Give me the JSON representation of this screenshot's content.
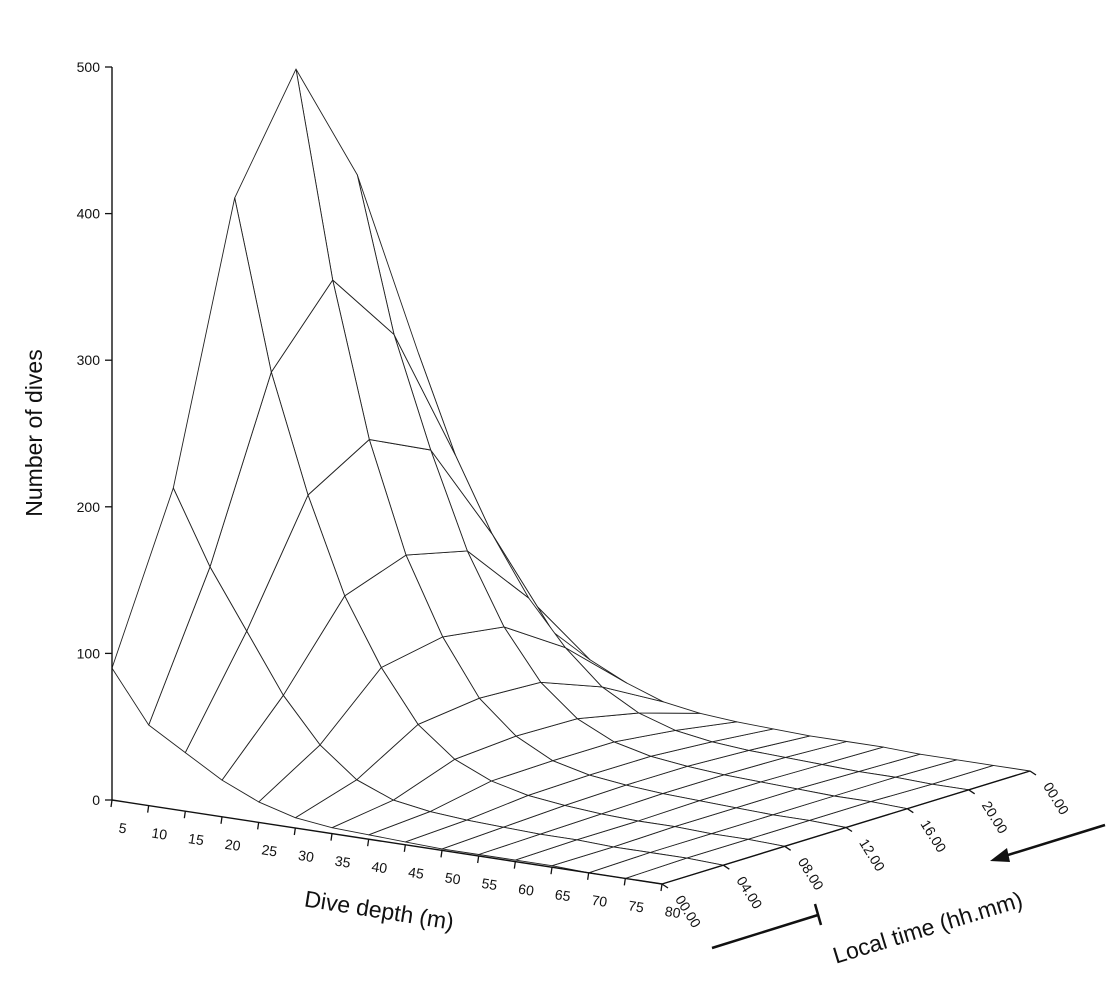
{
  "chart_data": {
    "type": "surface",
    "xlabel": "Dive depth (m)",
    "ylabel": "Number of dives",
    "zlabel": "Local time (hh.mm)",
    "depth_ticks": [
      "5",
      "10",
      "15",
      "20",
      "25",
      "30",
      "35",
      "40",
      "45",
      "50",
      "55",
      "60",
      "65",
      "70",
      "75",
      "80"
    ],
    "time_ticks": [
      "00.00",
      "04.00",
      "08.00",
      "12.00",
      "16.00",
      "20.00",
      "00.00"
    ],
    "count_ticks": [
      "0",
      "100",
      "200",
      "300",
      "400",
      "500"
    ],
    "count_range": [
      0,
      500
    ],
    "depths": [
      5,
      10,
      15,
      20,
      25,
      30,
      35,
      40,
      45,
      50,
      55,
      60,
      65,
      70,
      75,
      80
    ],
    "times": [
      0,
      4,
      8,
      12,
      16,
      20,
      24
    ],
    "dives": [
      [
        90,
        55,
        40,
        25,
        14,
        7,
        4,
        3,
        2,
        1,
        1,
        1,
        1,
        0,
        0,
        0
      ],
      [
        200,
        150,
        110,
        70,
        40,
        20,
        10,
        6,
        4,
        3,
        2,
        2,
        1,
        1,
        1,
        0
      ],
      [
        385,
        270,
        190,
        125,
        80,
        45,
        25,
        14,
        8,
        5,
        3,
        2,
        2,
        1,
        1,
        0
      ],
      [
        460,
        320,
        215,
        140,
        88,
        50,
        28,
        15,
        9,
        6,
        4,
        3,
        2,
        1,
        1,
        0
      ],
      [
        375,
        270,
        195,
        130,
        82,
        48,
        27,
        15,
        9,
        6,
        4,
        3,
        2,
        1,
        1,
        0
      ],
      [
        240,
        175,
        125,
        85,
        55,
        32,
        18,
        10,
        6,
        4,
        3,
        2,
        1,
        1,
        0,
        0
      ],
      [
        95,
        65,
        45,
        30,
        18,
        9,
        5,
        3,
        2,
        1,
        1,
        1,
        0,
        0,
        0,
        0
      ]
    ]
  }
}
